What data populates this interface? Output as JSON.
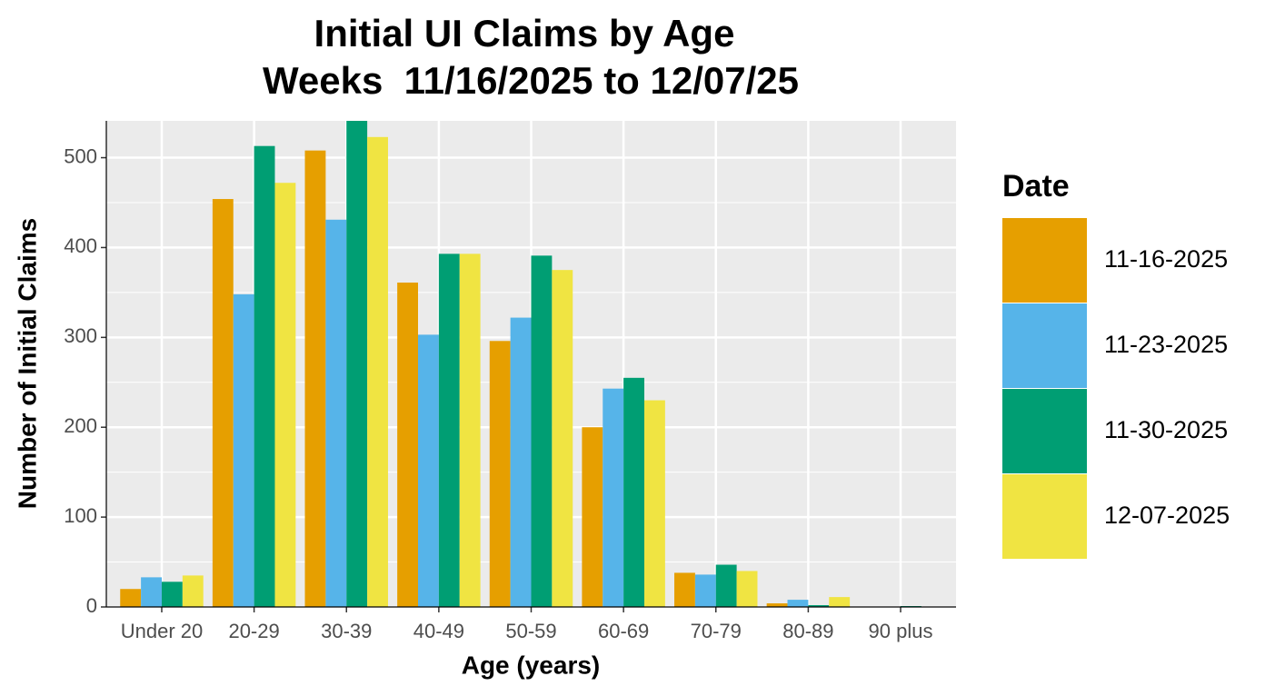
{
  "chart_data": {
    "type": "bar",
    "title": [
      "Initial UI Claims by Age",
      "Weeks  11/16/2025 to 12/07/25"
    ],
    "x_label": "Age (years)",
    "y_label": "Number of Initial Claims",
    "legend_title": "Date",
    "categories": [
      "Under 20",
      "20-29",
      "30-39",
      "40-49",
      "50-59",
      "60-69",
      "70-79",
      "80-89",
      "90 plus"
    ],
    "series": [
      {
        "name": "11-16-2025",
        "color": "#E69F00",
        "values": [
          20,
          454,
          508,
          361,
          296,
          200,
          38,
          4,
          0
        ]
      },
      {
        "name": "11-23-2025",
        "color": "#56B4E9",
        "values": [
          33,
          348,
          431,
          303,
          322,
          243,
          36,
          8,
          0
        ]
      },
      {
        "name": "11-30-2025",
        "color": "#009E73",
        "values": [
          28,
          513,
          541,
          393,
          391,
          255,
          47,
          2,
          1
        ]
      },
      {
        "name": "12-07-2025",
        "color": "#F0E442",
        "values": [
          35,
          472,
          523,
          393,
          375,
          230,
          40,
          11,
          0
        ]
      }
    ],
    "ylim": [
      0,
      541
    ],
    "yticks": [
      0,
      100,
      200,
      300,
      400,
      500
    ],
    "grid": true,
    "legend_position": "right"
  }
}
